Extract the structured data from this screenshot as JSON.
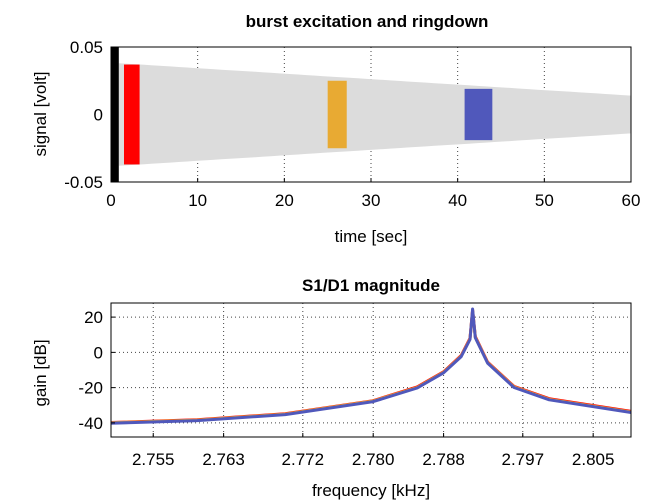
{
  "chart_data": [
    {
      "type": "line",
      "title": "burst excitation and ringdown",
      "xlabel": "time [sec]",
      "ylabel": "signal [volt]",
      "xlim": [
        0,
        60
      ],
      "ylim": [
        -0.05,
        0.05
      ],
      "xticks": [
        0,
        10,
        20,
        30,
        40,
        50,
        60
      ],
      "xtick_labels": [
        "0",
        "10",
        "20",
        "30",
        "40",
        "50",
        "60"
      ],
      "yticks": [
        -0.05,
        0,
        0.05
      ],
      "ytick_labels": [
        "-0.05",
        "0",
        "0.05"
      ],
      "grid": true,
      "series": [
        {
          "color": "#000000",
          "t_start": 0.0,
          "t_end": 0.9,
          "amplitude": 0.05,
          "kind": "burst"
        },
        {
          "color": "#dcdcdc",
          "t_start": 0.9,
          "t_end": 60,
          "amplitude_start": 0.038,
          "amplitude_end": 0.014,
          "kind": "ringdown"
        },
        {
          "color": "#ff0000",
          "t_start": 1.5,
          "t_end": 3.3,
          "amplitude": 0.037,
          "kind": "window"
        },
        {
          "color": "#e8aa33",
          "t_start": 25.0,
          "t_end": 27.2,
          "amplitude": 0.025,
          "kind": "window"
        },
        {
          "color": "#5058bb",
          "t_start": 40.8,
          "t_end": 44.0,
          "amplitude": 0.019,
          "kind": "window"
        }
      ]
    },
    {
      "type": "line",
      "title": "S1/D1 magnitude",
      "xlabel": "frequency [kHz]",
      "ylabel": "gain [dB]",
      "xlim": [
        2.7502,
        2.8093
      ],
      "ylim": [
        -48,
        28
      ],
      "xticks": [
        2.755,
        2.763,
        2.772,
        2.78,
        2.788,
        2.797,
        2.805
      ],
      "xtick_labels": [
        "2.755",
        "2.763",
        "2.772",
        "2.780",
        "2.788",
        "2.797",
        "2.805"
      ],
      "yticks": [
        -40,
        -20,
        0,
        20
      ],
      "ytick_labels": [
        "-40",
        "-20",
        "0",
        "20"
      ],
      "grid": true,
      "peak_frequency": 2.7913,
      "series": [
        {
          "color": "#ff0000",
          "x": [
            2.7502,
            2.76,
            2.77,
            2.78,
            2.785,
            2.788,
            2.79,
            2.791,
            2.7913,
            2.7916,
            2.793,
            2.796,
            2.8,
            2.8093
          ],
          "y": [
            -39.8,
            -38.2,
            -34.8,
            -27.4,
            -19.6,
            -11.0,
            -1.8,
            8.0,
            24.0,
            9.0,
            -5.5,
            -19.3,
            -26.3,
            -33.5
          ]
        },
        {
          "color": "#e8aa33",
          "x": [
            2.7502,
            2.76,
            2.77,
            2.78,
            2.785,
            2.788,
            2.79,
            2.791,
            2.7913,
            2.7916,
            2.793,
            2.796,
            2.8,
            2.8093
          ],
          "y": [
            -39.9,
            -38.4,
            -35.0,
            -27.6,
            -19.9,
            -11.3,
            -2.1,
            7.6,
            23.6,
            8.6,
            -5.8,
            -19.6,
            -26.6,
            -33.8
          ]
        },
        {
          "color": "#5058bb",
          "x": [
            2.7502,
            2.76,
            2.77,
            2.78,
            2.785,
            2.788,
            2.79,
            2.791,
            2.7913,
            2.7916,
            2.793,
            2.796,
            2.8,
            2.8093
          ],
          "y": [
            -40.2,
            -38.7,
            -35.3,
            -27.9,
            -20.2,
            -11.6,
            -2.4,
            7.3,
            24.6,
            8.3,
            -6.1,
            -19.9,
            -26.9,
            -34.1
          ]
        }
      ]
    }
  ]
}
